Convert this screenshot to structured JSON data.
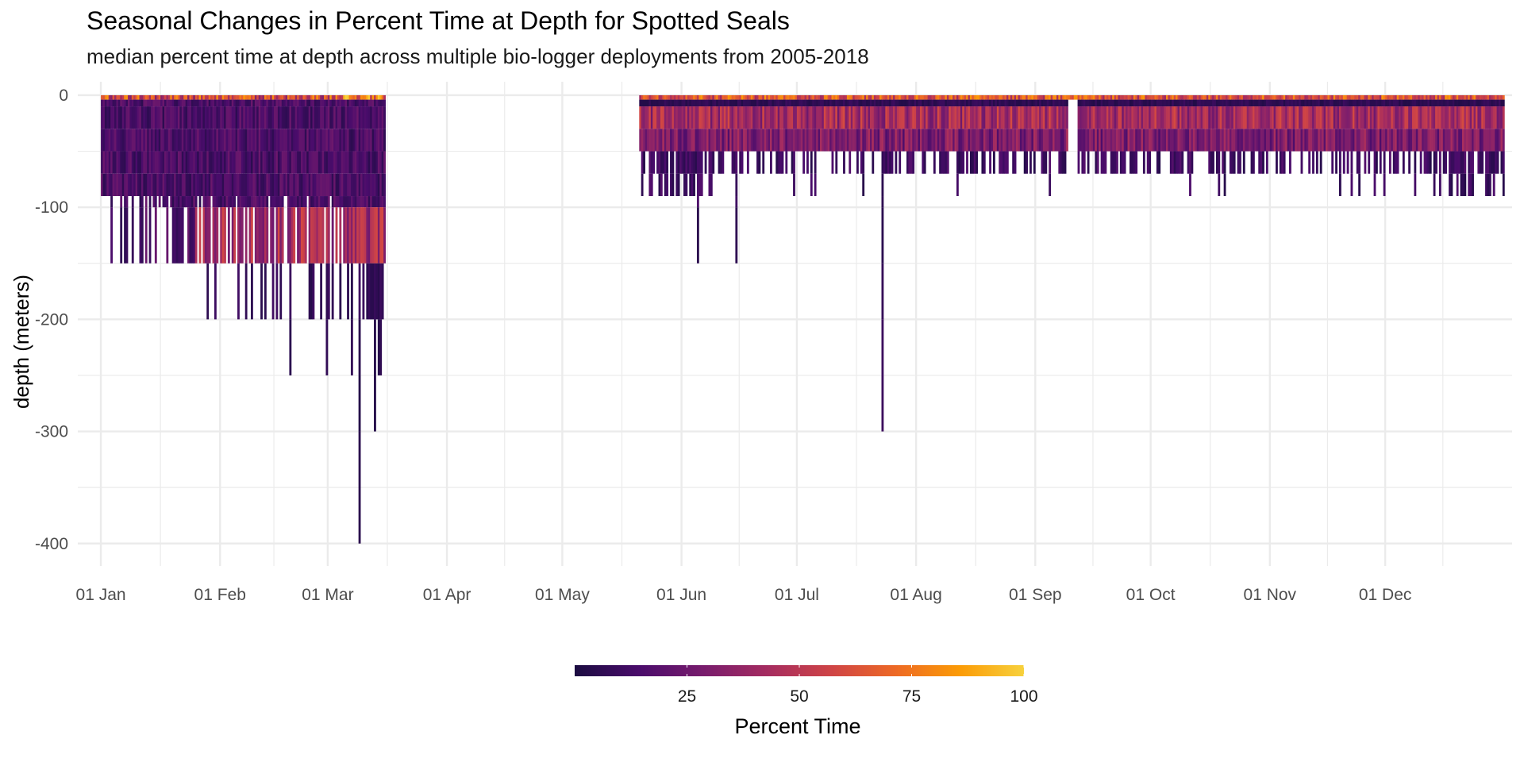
{
  "chart_data": {
    "type": "heatmap",
    "title": "Seasonal Changes in Percent Time at Depth for Spotted Seals",
    "subtitle": "median percent time at depth across multiple bio-logger deployments from 2005-2018",
    "xlabel": "",
    "ylabel": "depth (meters)",
    "x_ticks": [
      "01 Jan",
      "01 Feb",
      "01 Mar",
      "01 Apr",
      "01 May",
      "01 Jun",
      "01 Jul",
      "01 Aug",
      "01 Sep",
      "01 Oct",
      "01 Nov",
      "01 Dec"
    ],
    "x_tick_day_of_year": [
      1,
      32,
      60,
      91,
      121,
      152,
      182,
      213,
      244,
      274,
      305,
      335
    ],
    "y_ticks": [
      0,
      -100,
      -200,
      -300,
      -400
    ],
    "ylim": [
      -420,
      12
    ],
    "xlim_day_of_year": [
      -5,
      368
    ],
    "grid": true,
    "depth_bins": [
      0,
      -4,
      -10,
      -30,
      -50,
      -70,
      -90,
      -100,
      -150,
      -200,
      -250,
      -300,
      -400
    ],
    "legend": {
      "title": "Percent Time",
      "position": "bottom",
      "ticks": [
        25,
        50,
        75,
        100
      ],
      "range": [
        0,
        100
      ],
      "palette": [
        "#1b0c41",
        "#4a0c6b",
        "#781c6d",
        "#a52c60",
        "#cf4446",
        "#ed6925",
        "#fb9b06",
        "#f7d13d"
      ]
    },
    "segments": [
      {
        "start_day": 1,
        "end_day": 75,
        "max_depth_typical": -90,
        "deep_band": [
          -100,
          -150
        ],
        "deepest": -400
      },
      {
        "start_day": 141,
        "end_day": 366,
        "max_depth_typical": -50,
        "deep_band": [
          -50,
          -90
        ],
        "deepest": -300
      }
    ]
  }
}
